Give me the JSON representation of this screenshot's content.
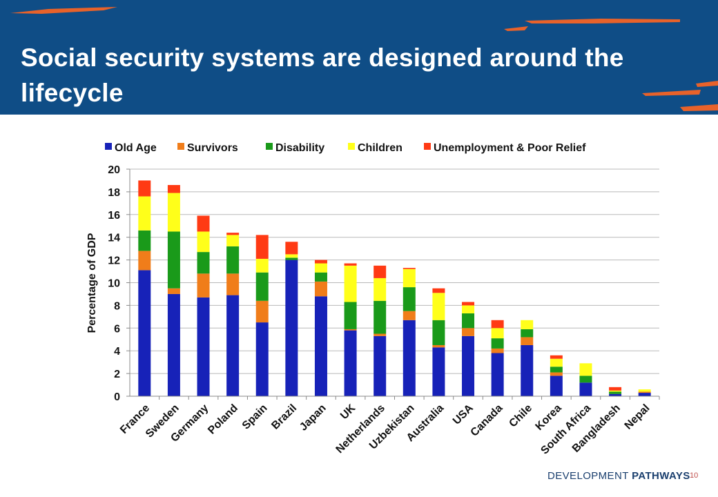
{
  "slide": {
    "title": "Social security systems are designed around the lifecycle",
    "brand_light": "DEVELOPMENT ",
    "brand_bold": "PATHWAYS",
    "page_number": "10"
  },
  "colors": {
    "banner": "#0f4d86",
    "accent_stroke": "#e8622a",
    "old_age": "#1722b8",
    "survivors": "#f07d1a",
    "disability": "#1a9a1a",
    "children": "#ffff1a",
    "unemployment": "#ff3a14"
  },
  "chart_data": {
    "type": "bar",
    "stacked": true,
    "title": "",
    "xlabel": "",
    "ylabel": "Percentage of GDP",
    "ylim": [
      0,
      20
    ],
    "yticks": [
      0,
      2,
      4,
      6,
      8,
      10,
      12,
      14,
      16,
      18,
      20
    ],
    "grid": true,
    "legend_position": "top",
    "categories": [
      "France",
      "Sweden",
      "Germany",
      "Poland",
      "Spain",
      "Brazil",
      "Japan",
      "UK",
      "Netherlands",
      "Uzbekistan",
      "Australia",
      "USA",
      "Canada",
      "Chile",
      "Korea",
      "South Africa",
      "Bangladesh",
      "Nepal"
    ],
    "series": [
      {
        "name": "Old Age",
        "color": "#1722b8",
        "values": [
          11.1,
          9.0,
          8.7,
          8.9,
          6.5,
          12.0,
          8.8,
          5.8,
          5.3,
          6.7,
          4.3,
          5.3,
          3.8,
          4.5,
          1.8,
          1.2,
          0.2,
          0.3
        ]
      },
      {
        "name": "Survivors",
        "color": "#f07d1a",
        "values": [
          1.7,
          0.5,
          2.1,
          1.9,
          1.9,
          0.0,
          1.3,
          0.1,
          0.2,
          0.8,
          0.2,
          0.7,
          0.4,
          0.7,
          0.3,
          0.0,
          0.0,
          0.1
        ]
      },
      {
        "name": "Disability",
        "color": "#1a9a1a",
        "values": [
          1.8,
          5.0,
          1.9,
          2.4,
          2.5,
          0.2,
          0.8,
          2.4,
          2.9,
          2.1,
          2.2,
          1.3,
          0.9,
          0.7,
          0.5,
          0.6,
          0.2,
          0.0
        ]
      },
      {
        "name": "Children",
        "color": "#ffff1a",
        "values": [
          3.0,
          3.4,
          1.8,
          1.0,
          1.2,
          0.3,
          0.8,
          3.2,
          2.0,
          1.6,
          2.4,
          0.7,
          0.9,
          0.8,
          0.7,
          1.1,
          0.1,
          0.2
        ]
      },
      {
        "name": "Unemployment & Poor Relief",
        "color": "#ff3a14",
        "values": [
          1.4,
          0.7,
          1.4,
          0.2,
          2.1,
          1.1,
          0.3,
          0.2,
          1.1,
          0.1,
          0.4,
          0.3,
          0.7,
          0.0,
          0.3,
          0.0,
          0.3,
          0.0
        ]
      }
    ]
  }
}
